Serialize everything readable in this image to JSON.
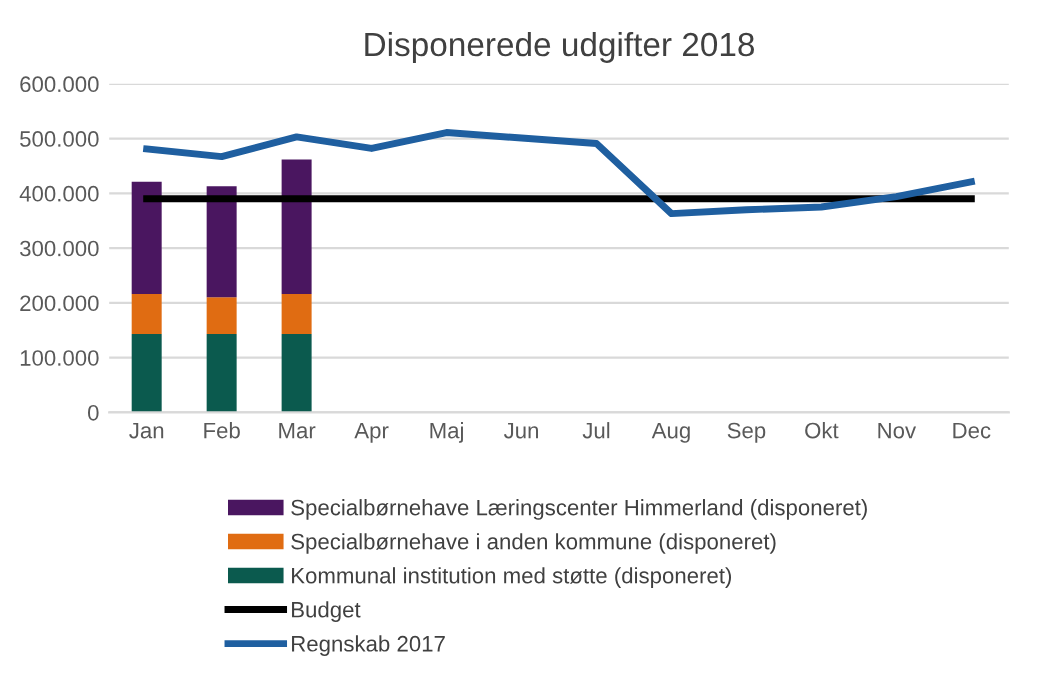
{
  "chart_data": {
    "type": "bar",
    "title": "Disponerede udgifter 2018",
    "stacked": true,
    "categories": [
      "Jan",
      "Feb",
      "Mar",
      "Apr",
      "Maj",
      "Jun",
      "Jul",
      "Aug",
      "Sep",
      "Okt",
      "Nov",
      "Dec"
    ],
    "series": [
      {
        "name": "Kommunal institution med støtte (disponeret)",
        "color": "#0b5a4e",
        "values": [
          143000,
          143000,
          143000,
          null,
          null,
          null,
          null,
          null,
          null,
          null,
          null,
          null
        ]
      },
      {
        "name": "Specialbørnehave i anden kommune (disponeret)",
        "color": "#e06c12",
        "values": [
          73000,
          67000,
          73000,
          null,
          null,
          null,
          null,
          null,
          null,
          null,
          null,
          null
        ]
      },
      {
        "name": "Specialbørnehave Læringscenter Himmerland (disponeret)",
        "color": "#4a1660",
        "values": [
          205000,
          203000,
          246000,
          null,
          null,
          null,
          null,
          null,
          null,
          null,
          null,
          null
        ]
      },
      {
        "name": "Budget",
        "type": "line",
        "color": "#000000",
        "values": [
          390000,
          390000,
          390000,
          390000,
          390000,
          390000,
          390000,
          390000,
          390000,
          390000,
          390000,
          390000
        ]
      },
      {
        "name": "Regnskab 2017",
        "type": "line",
        "color": "#1f5fa0",
        "values": [
          481000,
          467000,
          503000,
          482000,
          511000,
          501000,
          491000,
          363000,
          370000,
          375000,
          394000,
          421000
        ]
      }
    ],
    "ylim": [
      0,
      600000
    ],
    "yticks": [
      0,
      {
        "value": 100000,
        "label": "100.000"
      },
      {
        "value": 200000,
        "label": "200.000"
      },
      {
        "value": 300000,
        "label": "300.000"
      },
      {
        "value": 400000,
        "label": "400.000"
      },
      {
        "value": 500000,
        "label": "500.000"
      },
      {
        "value": 600000,
        "label": "600.000"
      }
    ],
    "grid": "y",
    "legend": "bottom"
  }
}
